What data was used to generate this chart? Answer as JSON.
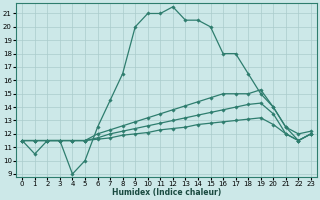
{
  "title": "",
  "xlabel": "Humidex (Indice chaleur)",
  "ylabel": "",
  "background_color": "#cce8e8",
  "grid_color": "#aacccc",
  "line_color": "#2e7d6e",
  "xlim": [
    -0.5,
    23.5
  ],
  "ylim": [
    8.8,
    21.8
  ],
  "yticks": [
    9,
    10,
    11,
    12,
    13,
    14,
    15,
    16,
    17,
    18,
    19,
    20,
    21
  ],
  "xticks": [
    0,
    1,
    2,
    3,
    4,
    5,
    6,
    7,
    8,
    9,
    10,
    11,
    12,
    13,
    14,
    15,
    16,
    17,
    18,
    19,
    20,
    21,
    22,
    23
  ],
  "lines": [
    {
      "x": [
        0,
        1,
        2,
        3,
        4,
        5,
        6,
        7,
        8,
        9,
        10,
        11,
        12,
        13,
        14,
        15,
        16,
        17,
        18,
        19,
        20,
        21,
        22,
        23
      ],
      "y": [
        11.5,
        10.5,
        11.5,
        11.5,
        9.0,
        10.0,
        12.5,
        14.5,
        16.5,
        20.0,
        21.0,
        21.0,
        21.5,
        20.5,
        20.5,
        20.0,
        18.0,
        18.0,
        16.5,
        15.0,
        14.0,
        12.5,
        11.5,
        12.0
      ]
    },
    {
      "x": [
        0,
        1,
        2,
        3,
        4,
        5,
        6,
        7,
        8,
        9,
        10,
        11,
        12,
        13,
        14,
        15,
        16,
        17,
        18,
        19,
        20,
        21,
        22,
        23
      ],
      "y": [
        11.5,
        11.5,
        11.5,
        11.5,
        11.5,
        11.5,
        12.0,
        12.3,
        12.6,
        12.9,
        13.2,
        13.5,
        13.8,
        14.1,
        14.4,
        14.7,
        15.0,
        15.0,
        15.0,
        15.3,
        14.0,
        12.5,
        12.0,
        12.2
      ]
    },
    {
      "x": [
        0,
        1,
        2,
        3,
        4,
        5,
        6,
        7,
        8,
        9,
        10,
        11,
        12,
        13,
        14,
        15,
        16,
        17,
        18,
        19,
        20,
        21,
        22,
        23
      ],
      "y": [
        11.5,
        11.5,
        11.5,
        11.5,
        11.5,
        11.5,
        11.7,
        12.0,
        12.2,
        12.4,
        12.6,
        12.8,
        13.0,
        13.2,
        13.4,
        13.6,
        13.8,
        14.0,
        14.2,
        14.3,
        13.5,
        12.0,
        11.5,
        12.0
      ]
    },
    {
      "x": [
        0,
        1,
        2,
        3,
        4,
        5,
        6,
        7,
        8,
        9,
        10,
        11,
        12,
        13,
        14,
        15,
        16,
        17,
        18,
        19,
        20,
        21,
        22,
        23
      ],
      "y": [
        11.5,
        11.5,
        11.5,
        11.5,
        11.5,
        11.5,
        11.6,
        11.7,
        11.9,
        12.0,
        12.1,
        12.3,
        12.4,
        12.5,
        12.7,
        12.8,
        12.9,
        13.0,
        13.1,
        13.2,
        12.7,
        12.0,
        11.5,
        12.0
      ]
    }
  ]
}
